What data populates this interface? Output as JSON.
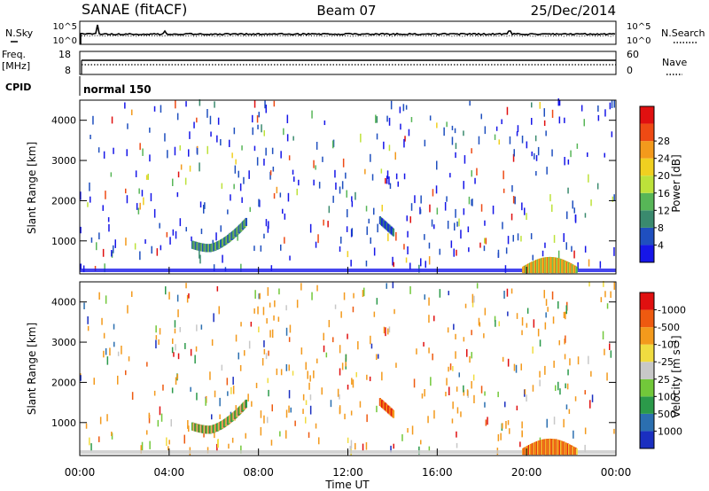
{
  "header": {
    "station": "SANAE (fitACF)",
    "beam": "Beam 07",
    "date": "25/Dec/2014"
  },
  "params": {
    "nsky_label": "N.Sky",
    "nsky_top": "10^5",
    "nsky_bottom": "10^0",
    "nsearch_label": "N.Search",
    "nsearch_top": "10^5",
    "nsearch_bottom": "10^0",
    "freq_label": "Freq.",
    "freq_unit": "[MHz]",
    "freq_top": "18",
    "freq_bottom": "8",
    "nave_label": "Nave",
    "nave_top": "60",
    "nave_bottom": "0",
    "cpid_label": "CPID",
    "cpid_value": "normal 150"
  },
  "chart_data": [
    {
      "type": "heatmap",
      "panel": "power",
      "ylabel": "Slant Range [km]",
      "yticks": [
        "1000",
        "2000",
        "3000",
        "4000"
      ],
      "ylim": [
        180,
        4500
      ],
      "colorbar_label": "Power [dB]",
      "colorbar_ticks": [
        "4",
        "8",
        "12",
        "16",
        "20",
        "24",
        "28"
      ],
      "colorbar_colors": [
        "#1616e8",
        "#1f4fbf",
        "#3a8a6e",
        "#57b657",
        "#bde23a",
        "#f0d020",
        "#f39a1c",
        "#ee4a14",
        "#e01010"
      ],
      "features": [
        {
          "name": "arc",
          "t_start": 5.0,
          "t_end": 7.4,
          "range_min": 650,
          "range_max": 1450
        },
        {
          "name": "ground scatter",
          "t_start": 19.8,
          "t_end": 22.2,
          "range_min": 200,
          "range_max": 600
        },
        {
          "name": "patch",
          "t_start": 13.4,
          "t_end": 14.0,
          "range_min": 1200,
          "range_max": 1500
        }
      ]
    },
    {
      "type": "heatmap",
      "panel": "velocity",
      "xlabel": "Time UT",
      "xticks": [
        "00:00",
        "04:00",
        "08:00",
        "12:00",
        "16:00",
        "20:00",
        "00:00"
      ],
      "xlim": [
        0,
        24
      ],
      "ylabel": "Slant Range [km]",
      "yticks": [
        "1000",
        "2000",
        "3000",
        "4000"
      ],
      "ylim": [
        180,
        4500
      ],
      "colorbar_label": "Velocity [m s⁻¹]",
      "colorbar_ticks": [
        "1000",
        "500",
        "100",
        "25",
        "-25",
        "-100",
        "-500",
        "-1000"
      ],
      "colorbar_colors": [
        "#1a2fc0",
        "#2b6fb0",
        "#2b9a4a",
        "#72c83a",
        "#c8c8c8",
        "#f0dc40",
        "#f39a1c",
        "#ee5a10",
        "#e01010"
      ],
      "features": [
        {
          "name": "arc",
          "t_start": 5.0,
          "t_end": 7.4,
          "range_min": 650,
          "range_max": 1450
        },
        {
          "name": "ground scatter",
          "t_start": 19.8,
          "t_end": 22.2,
          "range_min": 200,
          "range_max": 600
        },
        {
          "name": "patch",
          "t_start": 13.4,
          "t_end": 14.0,
          "range_min": 1200,
          "range_max": 1500
        }
      ]
    }
  ]
}
